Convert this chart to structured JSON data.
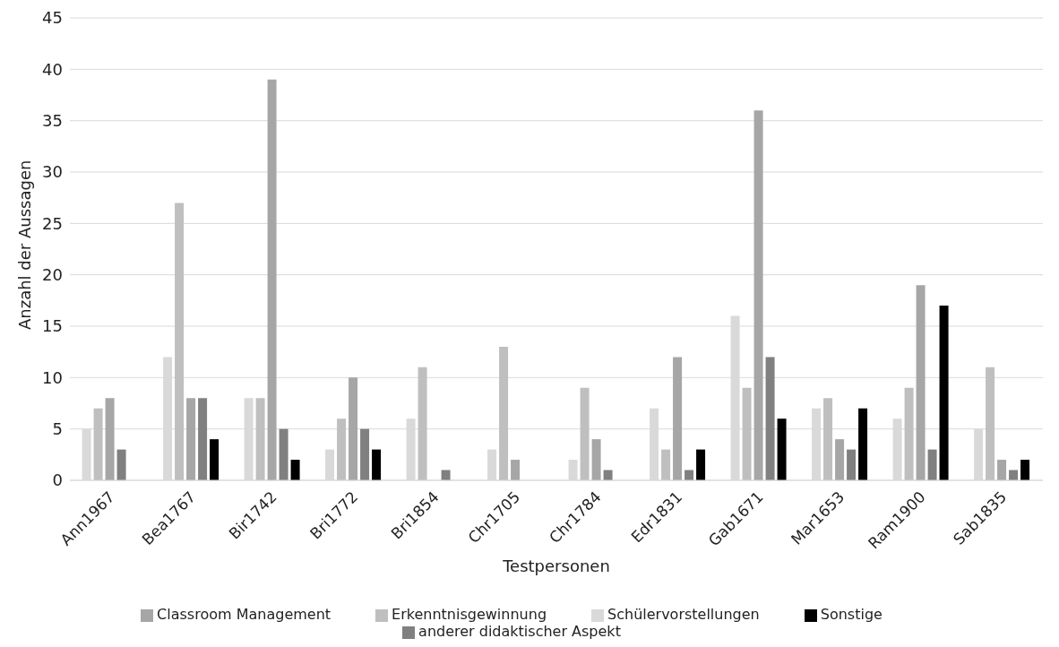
{
  "chart_data": {
    "type": "bar",
    "xlabel": "Testpersonen",
    "ylabel": "Anzahl der Aussagen",
    "categories": [
      "Ann1967",
      "Bea1767",
      "Bir1742",
      "Bri1772",
      "Bri1854",
      "Chr1705",
      "Chr1784",
      "Edr1831",
      "Gab1671",
      "Mar1653",
      "Ram1900",
      "Sab1835"
    ],
    "series": [
      {
        "name": "Schülervorstellungen",
        "color": "#d9d9d9",
        "values": [
          5,
          12,
          8,
          3,
          6,
          3,
          2,
          7,
          16,
          7,
          6,
          5
        ]
      },
      {
        "name": "Erkenntnisgewinnung",
        "color": "#bfbfbf",
        "values": [
          7,
          27,
          8,
          6,
          11,
          13,
          9,
          3,
          9,
          8,
          9,
          11
        ]
      },
      {
        "name": "Classroom Management",
        "color": "#a6a6a6",
        "values": [
          8,
          8,
          39,
          10,
          0,
          2,
          4,
          12,
          36,
          4,
          19,
          2
        ]
      },
      {
        "name": "anderer didaktischer Aspekt",
        "color": "#808080",
        "values": [
          3,
          8,
          5,
          5,
          1,
          0,
          1,
          1,
          12,
          3,
          3,
          1
        ]
      },
      {
        "name": "Sonstige",
        "color": "#000000",
        "values": [
          0,
          4,
          2,
          3,
          0,
          0,
          0,
          3,
          6,
          7,
          17,
          2
        ]
      }
    ],
    "ylim": [
      0,
      45
    ],
    "yticks": [
      0,
      5,
      10,
      15,
      20,
      25,
      30,
      35,
      40,
      45
    ],
    "grid": "y",
    "legend": "bottom"
  }
}
